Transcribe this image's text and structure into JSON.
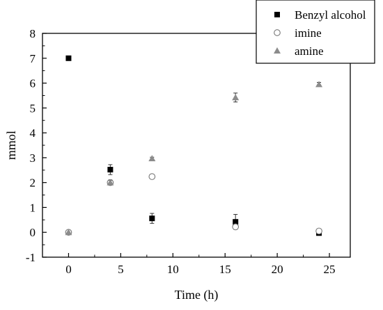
{
  "chart_data": {
    "type": "scatter",
    "xlabel": "Time (h)",
    "ylabel": "mmol",
    "xlim": [
      -2.5,
      27
    ],
    "ylim": [
      -1,
      8
    ],
    "xticks": [
      0,
      5,
      10,
      15,
      20,
      25
    ],
    "yticks": [
      -1,
      0,
      1,
      2,
      3,
      4,
      5,
      6,
      7,
      8
    ],
    "grid": false,
    "legend_position": "top-right",
    "series": [
      {
        "name": "Benzyl alcohol",
        "marker": "filled-square",
        "color": "#000000",
        "points": [
          {
            "x": 0,
            "y": 7.0,
            "err": 0
          },
          {
            "x": 4,
            "y": 2.52,
            "err": 0.2
          },
          {
            "x": 8,
            "y": 0.56,
            "err": 0.2
          },
          {
            "x": 16,
            "y": 0.42,
            "err": 0.3
          },
          {
            "x": 24,
            "y": -0.03,
            "err": 0
          }
        ]
      },
      {
        "name": "imine",
        "marker": "open-circle",
        "color": "#777777",
        "points": [
          {
            "x": 0,
            "y": 0.0,
            "err": 0
          },
          {
            "x": 4,
            "y": 2.0,
            "err": 0.05
          },
          {
            "x": 8,
            "y": 2.24,
            "err": 0.08
          },
          {
            "x": 16,
            "y": 0.22,
            "err": 0.08
          },
          {
            "x": 24,
            "y": 0.05,
            "err": 0
          }
        ]
      },
      {
        "name": "amine",
        "marker": "filled-triangle",
        "color": "#8c8c8c",
        "points": [
          {
            "x": 0,
            "y": 0.0,
            "err": 0
          },
          {
            "x": 4,
            "y": 2.0,
            "err": 0.1
          },
          {
            "x": 8,
            "y": 2.97,
            "err": 0.05
          },
          {
            "x": 16,
            "y": 5.42,
            "err": 0.18
          },
          {
            "x": 24,
            "y": 5.95,
            "err": 0.08
          }
        ]
      }
    ]
  }
}
